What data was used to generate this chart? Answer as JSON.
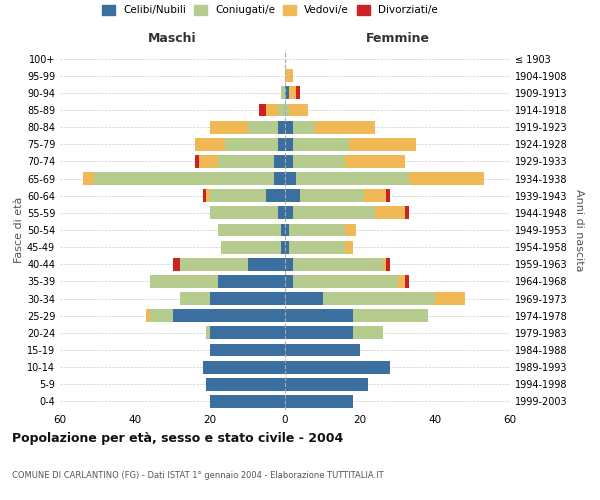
{
  "age_groups": [
    "0-4",
    "5-9",
    "10-14",
    "15-19",
    "20-24",
    "25-29",
    "30-34",
    "35-39",
    "40-44",
    "45-49",
    "50-54",
    "55-59",
    "60-64",
    "65-69",
    "70-74",
    "75-79",
    "80-84",
    "85-89",
    "90-94",
    "95-99",
    "100+"
  ],
  "birth_years": [
    "1999-2003",
    "1994-1998",
    "1989-1993",
    "1984-1988",
    "1979-1983",
    "1974-1978",
    "1969-1973",
    "1964-1968",
    "1959-1963",
    "1954-1958",
    "1949-1953",
    "1944-1948",
    "1939-1943",
    "1934-1938",
    "1929-1933",
    "1924-1928",
    "1919-1923",
    "1914-1918",
    "1909-1913",
    "1904-1908",
    "≤ 1903"
  ],
  "colors": {
    "celibi": "#3a6fa0",
    "coniugati": "#b5cc8e",
    "vedovi": "#f0b955",
    "divorziati": "#cc2222"
  },
  "male": {
    "celibi": [
      20,
      21,
      22,
      20,
      20,
      30,
      20,
      18,
      10,
      1,
      1,
      2,
      5,
      3,
      3,
      2,
      2,
      0,
      0,
      0,
      0
    ],
    "coniugati": [
      0,
      0,
      0,
      0,
      1,
      6,
      8,
      18,
      18,
      16,
      17,
      18,
      15,
      48,
      15,
      14,
      8,
      2,
      1,
      0,
      0
    ],
    "vedovi": [
      0,
      0,
      0,
      0,
      0,
      1,
      0,
      0,
      0,
      0,
      0,
      0,
      1,
      3,
      5,
      8,
      10,
      3,
      0,
      0,
      0
    ],
    "divorziati": [
      0,
      0,
      0,
      0,
      0,
      0,
      0,
      0,
      2,
      0,
      0,
      0,
      1,
      0,
      1,
      0,
      0,
      2,
      0,
      0,
      0
    ]
  },
  "female": {
    "nubili": [
      18,
      22,
      28,
      20,
      18,
      18,
      10,
      2,
      2,
      1,
      1,
      2,
      4,
      3,
      2,
      2,
      2,
      0,
      1,
      0,
      0
    ],
    "coniugate": [
      0,
      0,
      0,
      0,
      8,
      20,
      30,
      28,
      24,
      15,
      15,
      22,
      17,
      30,
      14,
      15,
      6,
      1,
      0,
      0,
      0
    ],
    "vedove": [
      0,
      0,
      0,
      0,
      0,
      0,
      8,
      2,
      1,
      2,
      3,
      8,
      6,
      20,
      16,
      18,
      16,
      5,
      2,
      2,
      0
    ],
    "divorziate": [
      0,
      0,
      0,
      0,
      0,
      0,
      0,
      1,
      1,
      0,
      0,
      1,
      1,
      0,
      0,
      0,
      0,
      0,
      1,
      0,
      0
    ]
  },
  "xlim": 60,
  "title": "Popolazione per età, sesso e stato civile - 2004",
  "subtitle": "COMUNE DI CARLANTINO (FG) - Dati ISTAT 1° gennaio 2004 - Elaborazione TUTTITALIA.IT",
  "ylabel_left": "Fasce di età",
  "ylabel_right": "Anni di nascita",
  "xlabel_left": "Maschi",
  "xlabel_right": "Femmine"
}
